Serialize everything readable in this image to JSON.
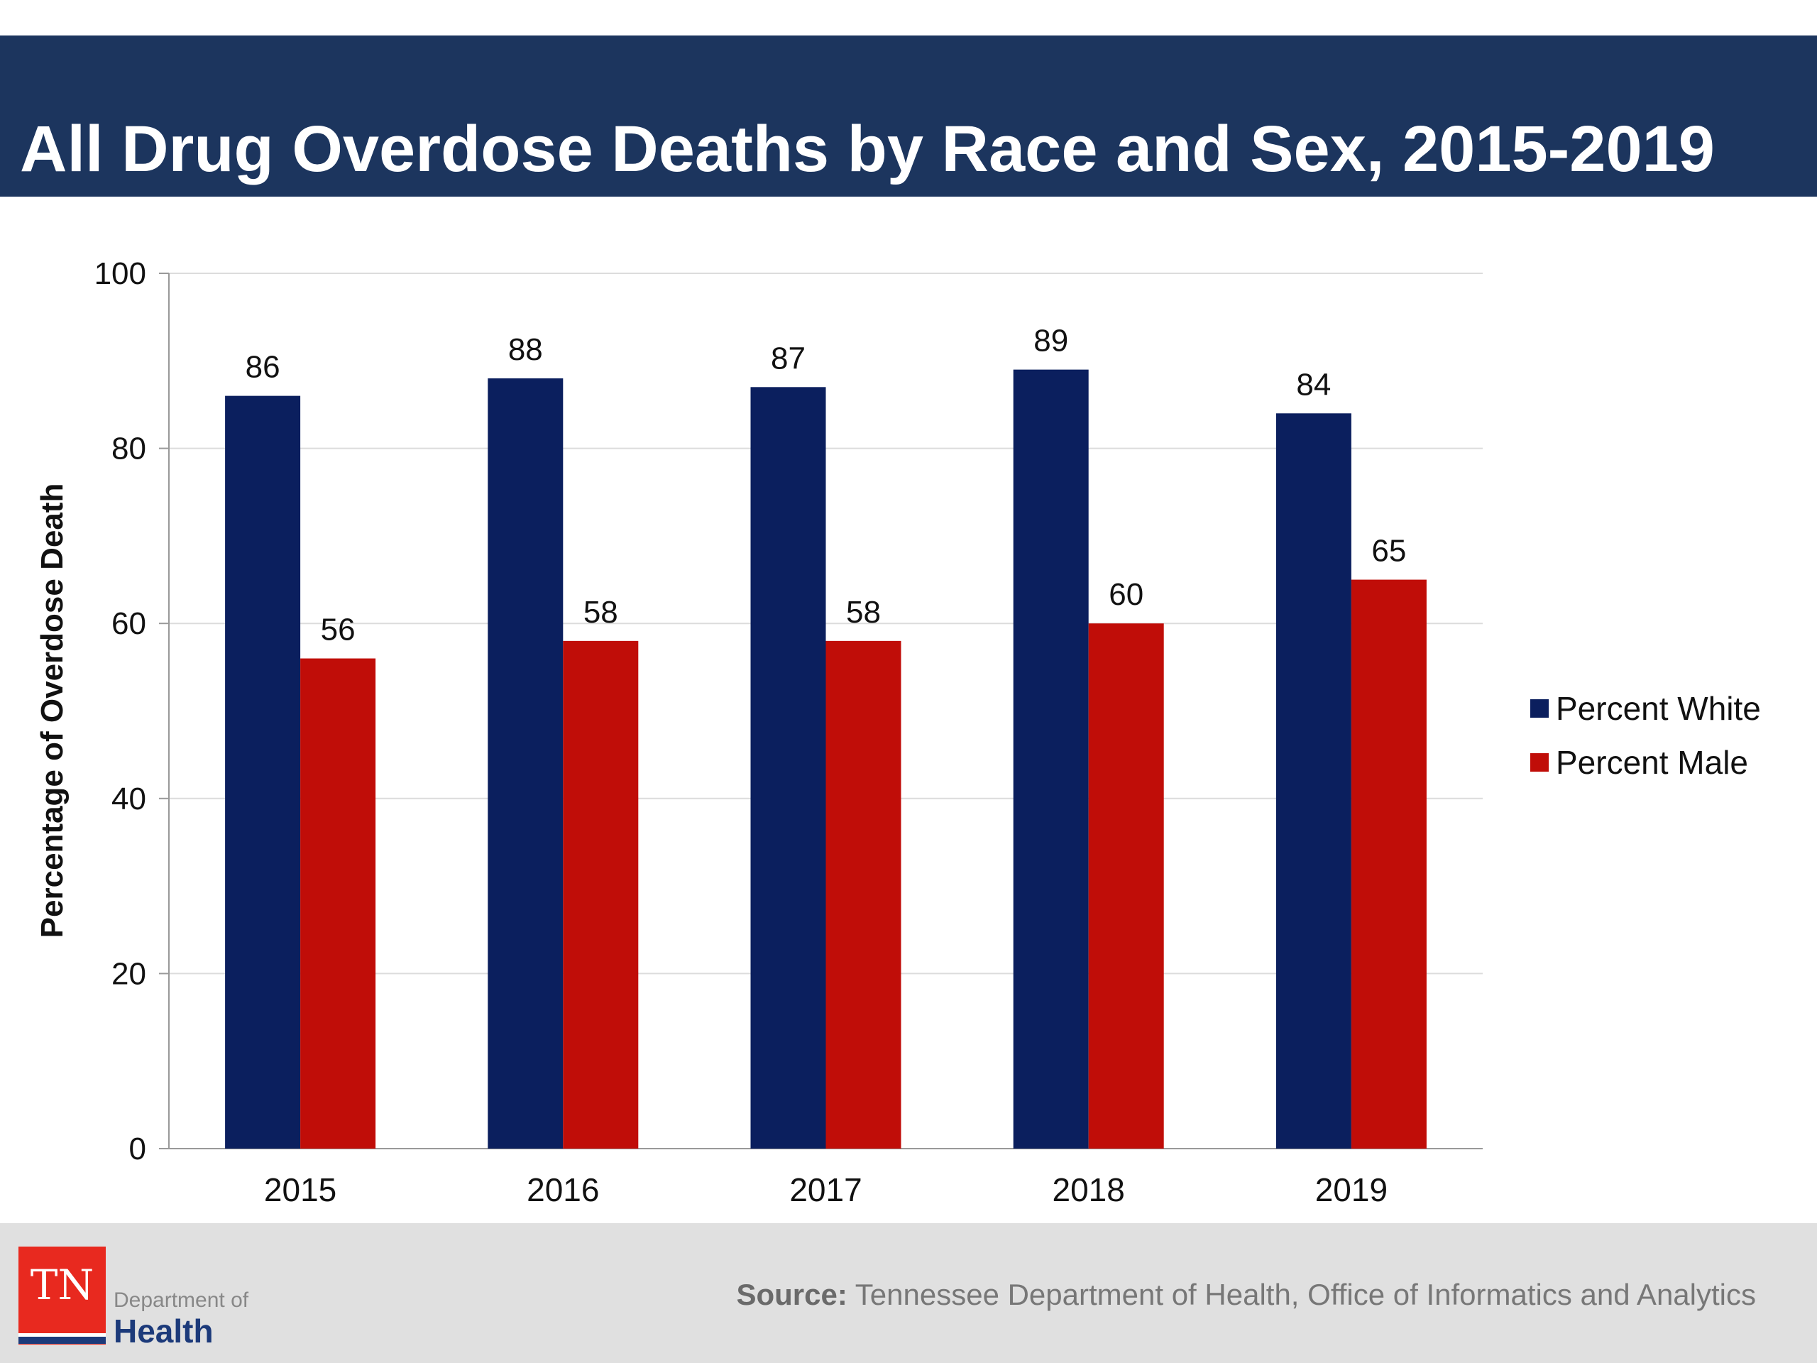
{
  "header": {
    "title": "All Drug Overdose Deaths by Race and Sex, 2015-2019"
  },
  "chart_data": {
    "type": "bar",
    "title": "All Drug Overdose Deaths by Race and Sex, 2015-2019",
    "xlabel": "",
    "ylabel": "Percentage of Overdose Death",
    "ylim": [
      0,
      100
    ],
    "yticks": [
      0,
      20,
      40,
      60,
      80,
      100
    ],
    "grid": true,
    "legend_position": "right",
    "categories": [
      "2015",
      "2016",
      "2017",
      "2018",
      "2019"
    ],
    "series": [
      {
        "name": "Percent White",
        "color": "#0b1f5e",
        "values": [
          86,
          88,
          87,
          89,
          84
        ]
      },
      {
        "name": "Percent Male",
        "color": "#c00d08",
        "values": [
          56,
          58,
          58,
          60,
          65
        ]
      }
    ]
  },
  "footer": {
    "source_label": "Source:",
    "source_text": "Tennessee Department of Health, Office of Informatics and Analytics",
    "logo": {
      "mark": "TN",
      "line1": "Department of",
      "line2": "Health"
    }
  }
}
